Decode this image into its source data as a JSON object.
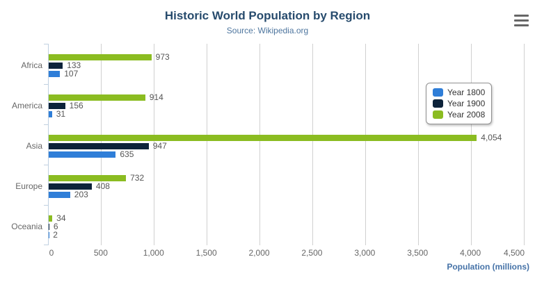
{
  "chart_data": {
    "type": "bar",
    "title": "Historic World Population by Region",
    "subtitle": "Source: Wikipedia.org",
    "categories": [
      "Africa",
      "America",
      "Asia",
      "Europe",
      "Oceania"
    ],
    "series": [
      {
        "name": "Year 1800",
        "color": "#2f7ed8",
        "values": [
          107,
          31,
          635,
          203,
          2
        ]
      },
      {
        "name": "Year 1900",
        "color": "#0d233a",
        "values": [
          133,
          156,
          947,
          408,
          6
        ]
      },
      {
        "name": "Year 2008",
        "color": "#8bbc21",
        "values": [
          973,
          914,
          4054,
          732,
          34
        ]
      }
    ],
    "bar_display_order_top_to_bottom": [
      "Year 2008",
      "Year 1900",
      "Year 1800"
    ],
    "xlabel": "Population (millions)",
    "ylabel": "",
    "xlim": [
      0,
      4500
    ],
    "x_ticks": [
      0,
      500,
      1000,
      1500,
      2000,
      2500,
      3000,
      3500,
      4000,
      4500
    ],
    "x_tick_labels": [
      "0",
      "500",
      "1,000",
      "1,500",
      "2,000",
      "2,500",
      "3,000",
      "3,500",
      "4,000",
      "4,500"
    ],
    "grid": true,
    "data_labels_visible": true,
    "legend": {
      "position": "right-middle",
      "items": [
        "Year 1800",
        "Year 1900",
        "Year 2008"
      ]
    }
  },
  "icons": {
    "context_menu": "hamburger-icon"
  },
  "ui_colors": {
    "title": "#274b6d",
    "subtitle": "#4d759e",
    "axis_title": "#4572a7",
    "tick_label": "#666666",
    "category_label": "#666666",
    "data_label": "#555555",
    "legend_text": "#333333",
    "legend_border": "#909090",
    "grid_line": "#d0d0d0",
    "axis_line": "#c0d0e0",
    "menu_icon": "#666666",
    "background": "#ffffff"
  }
}
